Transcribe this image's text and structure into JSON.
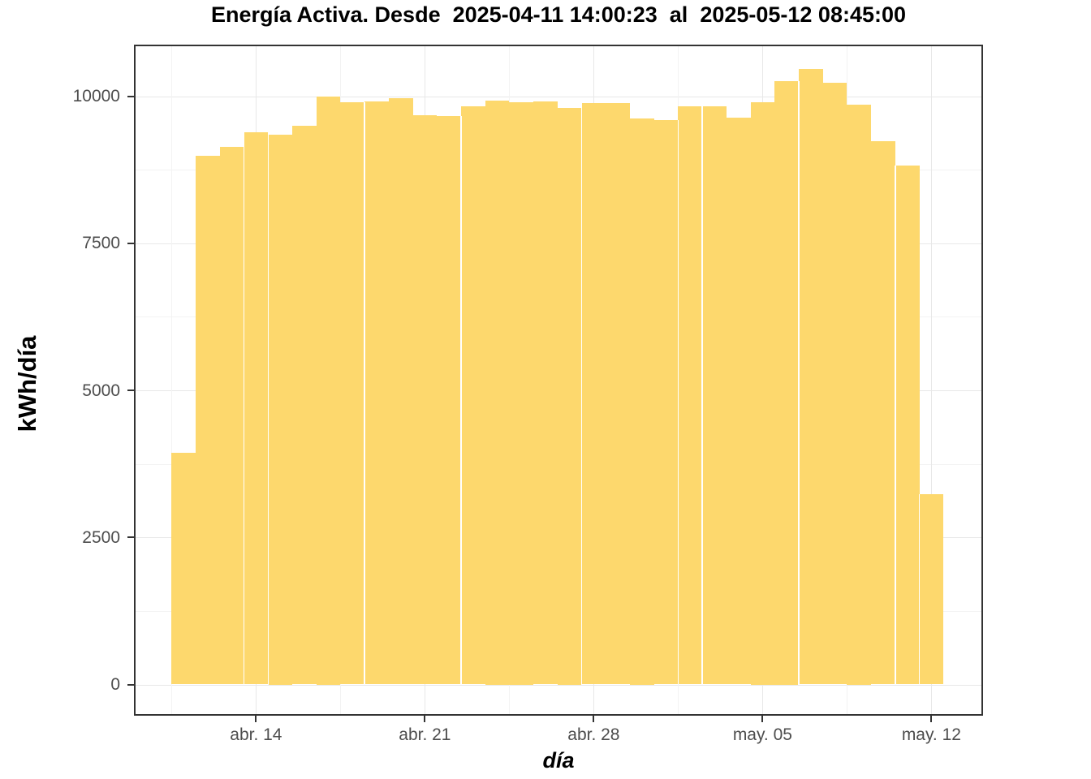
{
  "title": "Energía Activa. Desde  2025-04-11 14:00:23  al  2025-05-12 08:45:00",
  "axes": {
    "y_title": "kWh/día",
    "x_title": "día",
    "y_tick_labels": [
      "0",
      "2500",
      "5000",
      "7500",
      "10000"
    ],
    "x_tick_labels": [
      "abr. 14",
      "abr. 21",
      "abr. 28",
      "may. 05",
      "may. 12"
    ]
  },
  "colors": {
    "bar_fill": "#FDD86D",
    "grid_major": "#E8E8E8",
    "grid_minor": "#F3F3F3",
    "panel_border": "#333333",
    "tick_text": "#4d4d4d",
    "title_text": "#000000"
  },
  "chart_data": {
    "type": "bar",
    "title": "Energía Activa. Desde  2025-04-11 14:00:23  al  2025-05-12 08:45:00",
    "xlabel": "día",
    "ylabel": "kWh/día",
    "x": [
      "2025-04-11",
      "2025-04-12",
      "2025-04-13",
      "2025-04-14",
      "2025-04-15",
      "2025-04-16",
      "2025-04-17",
      "2025-04-18",
      "2025-04-19",
      "2025-04-20",
      "2025-04-21",
      "2025-04-22",
      "2025-04-23",
      "2025-04-24",
      "2025-04-25",
      "2025-04-26",
      "2025-04-27",
      "2025-04-28",
      "2025-04-29",
      "2025-04-30",
      "2025-05-01",
      "2025-05-02",
      "2025-05-03",
      "2025-05-04",
      "2025-05-05",
      "2025-05-06",
      "2025-05-07",
      "2025-05-08",
      "2025-05-09",
      "2025-05-10",
      "2025-05-11",
      "2025-05-12"
    ],
    "values": [
      3940,
      8990,
      9140,
      9380,
      9350,
      9490,
      10000,
      9890,
      9910,
      9960,
      9680,
      9660,
      9830,
      9925,
      9900,
      9915,
      9800,
      9880,
      9880,
      9625,
      9590,
      9830,
      9830,
      9630,
      9900,
      10250,
      10460,
      10230,
      9850,
      9230,
      8820,
      3230
    ],
    "y_major_gridlines": [
      0,
      2500,
      5000,
      7500,
      10000
    ],
    "y_minor_gridlines": [
      1250,
      3750,
      6250,
      8750
    ],
    "x_major_tick_dates": [
      "2025-04-14",
      "2025-04-21",
      "2025-04-28",
      "2025-05-05",
      "2025-05-12"
    ],
    "ylim": [
      -530,
      10875
    ],
    "grid": true,
    "legend": false,
    "seam_after_indices": [
      2,
      3,
      7,
      11,
      16,
      20,
      21,
      25,
      29,
      30
    ]
  }
}
